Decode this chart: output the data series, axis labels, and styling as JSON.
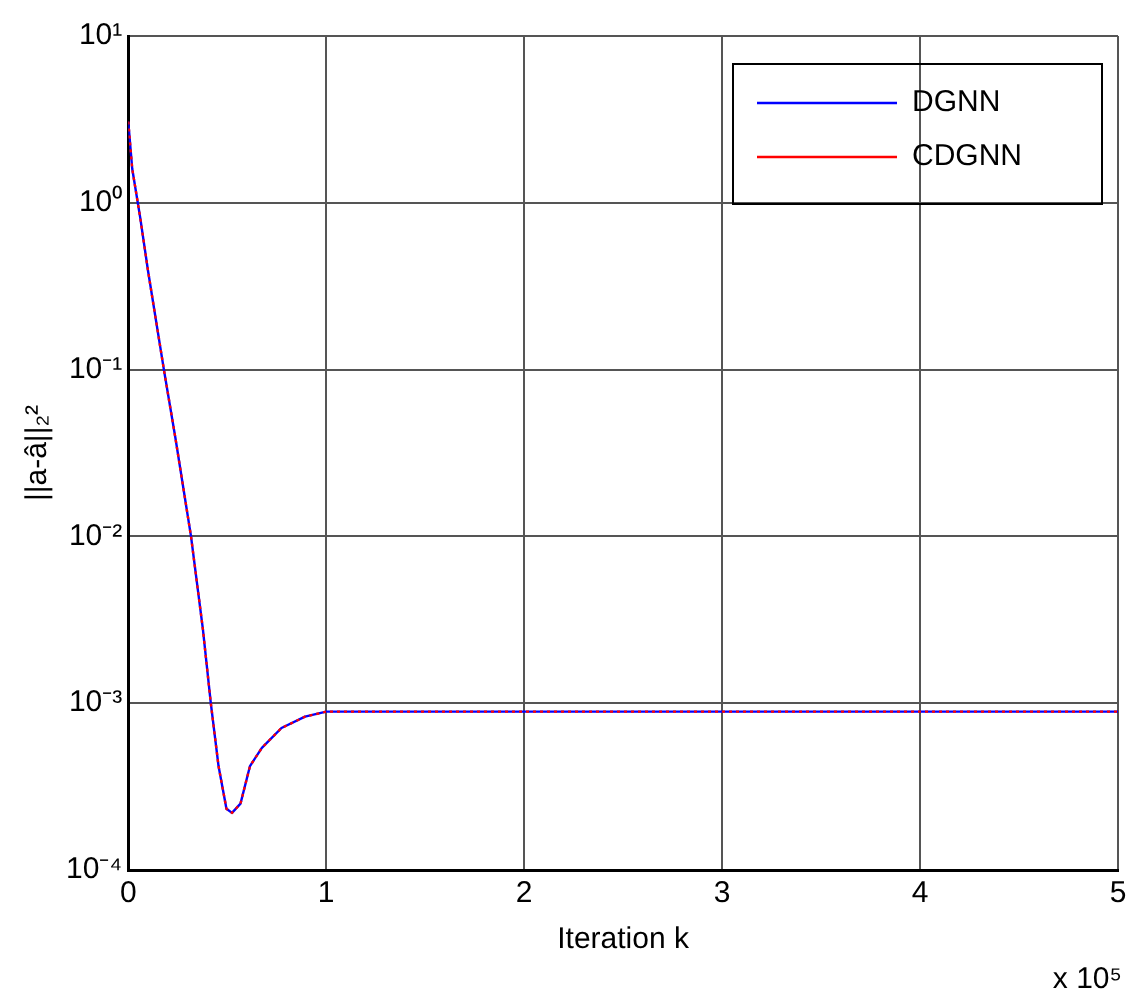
{
  "chart_data": {
    "type": "line",
    "xlabel": "Iteration k",
    "ylabel": "||a-â||₂²",
    "log": "y",
    "x": [
      0,
      0.02,
      0.06,
      0.1,
      0.18,
      0.238,
      0.317,
      0.377,
      0.417,
      0.456,
      0.496,
      0.524,
      0.567,
      0.615,
      0.675,
      0.774,
      0.893,
      1,
      5
    ],
    "series": [
      {
        "name": "DGNN",
        "color": "#0000ff",
        "line_style": "solid",
        "values": [
          3.07,
          1.6,
          0.82,
          0.39,
          0.1,
          0.039,
          0.01,
          0.00278,
          0.001,
          0.00042,
          0.000233,
          0.00022,
          0.00025,
          0.00042,
          0.00054,
          0.00071,
          0.00083,
          0.00089,
          0.00089
        ]
      },
      {
        "name": "CDGNN",
        "color": "#ff0000",
        "line_style": "dotted",
        "values": [
          3.07,
          1.6,
          0.82,
          0.39,
          0.1,
          0.039,
          0.01,
          0.00278,
          0.001,
          0.00042,
          0.000233,
          0.00022,
          0.00025,
          0.00042,
          0.00054,
          0.00071,
          0.00083,
          0.00089,
          0.00089
        ]
      }
    ],
    "xlim": [
      0,
      5
    ],
    "xticks": [
      0,
      1,
      2,
      3,
      4,
      5
    ],
    "ylim": [
      0.0001,
      10
    ],
    "yticks": [
      {
        "value": 0.0001,
        "label": "10⁻⁴"
      },
      {
        "value": 0.001,
        "label": "10⁻³"
      },
      {
        "value": 0.01,
        "label": "10⁻²"
      },
      {
        "value": 0.1,
        "label": "10⁻¹"
      },
      {
        "value": 1,
        "label": "10⁰"
      },
      {
        "value": 10,
        "label": "10¹"
      }
    ],
    "grid": true,
    "legend": "top right",
    "marker": "none",
    "annotations": [
      "x 10⁵"
    ]
  }
}
